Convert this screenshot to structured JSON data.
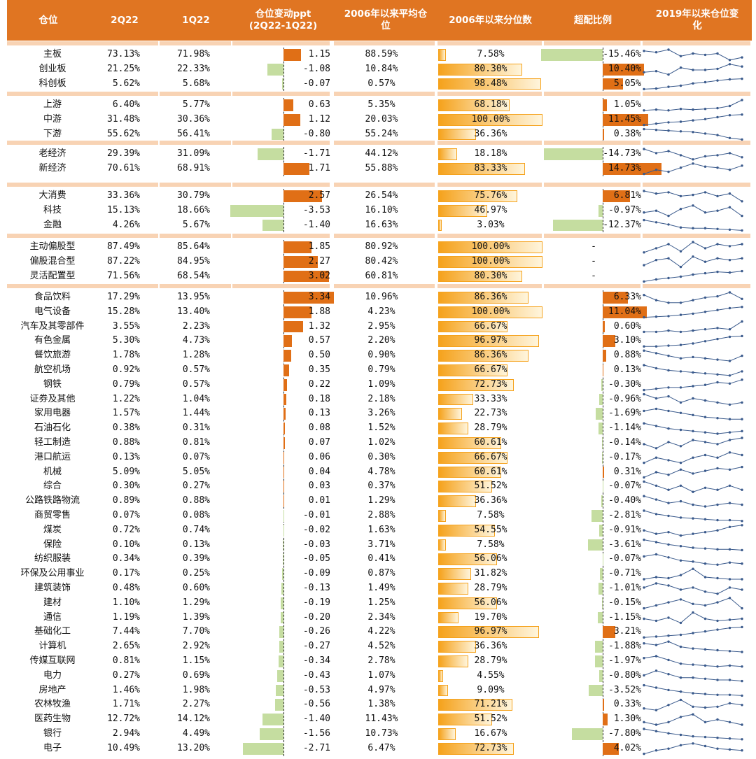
{
  "headers": [
    "仓位",
    "2Q22",
    "1Q22",
    "仓位变动ppt\n(2Q22-1Q22)",
    "2006年以来平均仓\n位",
    "2006年以来分位数",
    "超配比例",
    "2019年以来仓位变\n化"
  ],
  "colors": {
    "header_bg": "#E07522",
    "group_sep": "#F8D3B4",
    "negative_bar": "#C5DDA0",
    "positive_bar": "#E06F16",
    "percentile_bar": "#F5A21C",
    "sparkline": "#3A5A8C"
  },
  "chart_data": {
    "type": "table",
    "groups": [
      {
        "rows": [
          {
            "name": "主板",
            "q2": "73.13%",
            "q1": "71.98%",
            "change": 1.15,
            "avg": "88.59%",
            "pct": 7.58,
            "over": -15.46,
            "spark": [
              52,
              51,
              53,
              48,
              50,
              49,
              50,
              45,
              47
            ]
          },
          {
            "name": "创业板",
            "q2": "21.25%",
            "q1": "22.33%",
            "change": -1.08,
            "avg": "10.84%",
            "pct": 80.3,
            "over": 10.4,
            "spark": [
              48,
              49,
              46,
              52,
              50,
              50,
              51,
              55,
              53
            ]
          },
          {
            "name": "科创板",
            "q2": "5.62%",
            "q1": "5.68%",
            "change": -0.07,
            "avg": "0.57%",
            "pct": 98.48,
            "over": 5.05,
            "spark": [
              40,
              41,
              44,
              46,
              50,
              52,
              55,
              57,
              58
            ]
          }
        ]
      },
      {
        "rows": [
          {
            "name": "上游",
            "q2": "6.40%",
            "q1": "5.77%",
            "change": 0.63,
            "avg": "5.35%",
            "pct": 68.18,
            "over": 1.05,
            "spark": [
              44,
              45,
              44,
              46,
              45,
              46,
              47,
              50,
              58
            ]
          },
          {
            "name": "中游",
            "q2": "31.48%",
            "q1": "30.36%",
            "change": 1.12,
            "avg": "20.03%",
            "pct": 100.0,
            "over": 11.45,
            "spark": [
              40,
              42,
              44,
              45,
              47,
              49,
              52,
              55,
              56
            ]
          },
          {
            "name": "下游",
            "q2": "55.62%",
            "q1": "56.41%",
            "change": -0.8,
            "avg": "55.24%",
            "pct": 36.36,
            "over": 0.38,
            "spark": [
              56,
              55,
              54,
              53,
              52,
              50,
              48,
              44,
              42
            ]
          }
        ]
      },
      {
        "rows": [
          {
            "name": "老经济",
            "q2": "29.39%",
            "q1": "31.09%",
            "change": -1.71,
            "avg": "44.12%",
            "pct": 18.18,
            "over": -14.73,
            "spark": [
              56,
              52,
              54,
              50,
              46,
              49,
              50,
              52,
              48
            ]
          },
          {
            "name": "新经济",
            "q2": "70.61%",
            "q1": "68.91%",
            "change": 1.71,
            "avg": "55.88%",
            "pct": 83.33,
            "over": 14.73,
            "spark": [
              44,
              48,
              46,
              50,
              54,
              51,
              50,
              48,
              52
            ]
          }
        ]
      },
      {
        "rows": [
          {
            "name": "大消费",
            "q2": "33.36%",
            "q1": "30.79%",
            "change": 2.57,
            "avg": "26.54%",
            "pct": 75.76,
            "over": 6.81,
            "spark": [
              56,
              54,
              55,
              52,
              53,
              55,
              52,
              54,
              48
            ]
          },
          {
            "name": "科技",
            "q2": "15.13%",
            "q1": "18.66%",
            "change": -3.53,
            "avg": "16.10%",
            "pct": 46.97,
            "over": -0.97,
            "spark": [
              52,
              53,
              50,
              54,
              56,
              52,
              53,
              55,
              50
            ]
          },
          {
            "name": "金融",
            "q2": "4.26%",
            "q1": "5.67%",
            "change": -1.4,
            "avg": "16.63%",
            "pct": 3.03,
            "over": -12.37,
            "spark": [
              58,
              55,
              52,
              48,
              47,
              47,
              46,
              45,
              44
            ]
          }
        ]
      },
      {
        "rows": [
          {
            "name": "主动偏股型",
            "q2": "87.49%",
            "q1": "85.64%",
            "change": 1.85,
            "avg": "80.92%",
            "pct": 100.0,
            "over": "-",
            "spark": [
              44,
              48,
              52,
              45,
              54,
              48,
              52,
              50,
              52
            ]
          },
          {
            "name": "偏股混合型",
            "q2": "87.22%",
            "q1": "84.95%",
            "change": 2.27,
            "avg": "80.42%",
            "pct": 100.0,
            "over": "-",
            "spark": [
              44,
              50,
              52,
              42,
              54,
              48,
              52,
              50,
              52
            ]
          },
          {
            "name": "灵活配置型",
            "q2": "71.56%",
            "q1": "68.54%",
            "change": 3.02,
            "avg": "60.81%",
            "pct": 80.3,
            "over": "-",
            "spark": [
              40,
              43,
              45,
              47,
              50,
              52,
              54,
              53,
              55
            ]
          }
        ]
      },
      {
        "rows": [
          {
            "name": "食品饮料",
            "q2": "17.29%",
            "q1": "13.95%",
            "change": 3.34,
            "avg": "10.96%",
            "pct": 86.36,
            "over": 6.33,
            "spark": [
              56,
              52,
              50,
              50,
              52,
              54,
              55,
              58,
              53
            ]
          },
          {
            "name": "电气设备",
            "q2": "15.28%",
            "q1": "13.40%",
            "change": 1.88,
            "avg": "4.23%",
            "pct": 100.0,
            "over": 11.04,
            "spark": [
              40,
              41,
              42,
              44,
              46,
              49,
              52,
              55,
              57
            ]
          },
          {
            "name": "汽车及其零部件",
            "q2": "3.55%",
            "q1": "2.23%",
            "change": 1.32,
            "avg": "2.95%",
            "pct": 66.67,
            "over": 0.6,
            "spark": [
              44,
              44,
              45,
              44,
              45,
              46,
              47,
              46,
              52
            ]
          },
          {
            "name": "有色金属",
            "q2": "5.30%",
            "q1": "4.73%",
            "change": 0.57,
            "avg": "2.20%",
            "pct": 96.97,
            "over": 3.1,
            "spark": [
              42,
              42,
              43,
              44,
              46,
              49,
              52,
              55,
              56
            ]
          },
          {
            "name": "餐饮旅游",
            "q2": "1.78%",
            "q1": "1.28%",
            "change": 0.5,
            "avg": "0.90%",
            "pct": 86.36,
            "over": 0.88,
            "spark": [
              56,
              54,
              52,
              50,
              51,
              50,
              49,
              48,
              52
            ]
          },
          {
            "name": "航空机场",
            "q2": "0.92%",
            "q1": "0.57%",
            "change": 0.35,
            "avg": "0.79%",
            "pct": 66.67,
            "over": 0.13,
            "spark": [
              56,
              53,
              51,
              50,
              49,
              48,
              47,
              46,
              50
            ]
          },
          {
            "name": "钢铁",
            "q2": "0.79%",
            "q1": "0.57%",
            "change": 0.22,
            "avg": "1.09%",
            "pct": 72.73,
            "over": -0.3,
            "spark": [
              44,
              45,
              46,
              46,
              47,
              48,
              50,
              49,
              52
            ]
          },
          {
            "name": "证券及其他",
            "q2": "1.22%",
            "q1": "1.04%",
            "change": 0.18,
            "avg": "2.18%",
            "pct": 33.33,
            "over": -0.96,
            "spark": [
              52,
              50,
              51,
              48,
              50,
              49,
              48,
              47,
              48
            ]
          },
          {
            "name": "家用电器",
            "q2": "1.57%",
            "q1": "1.44%",
            "change": 0.13,
            "avg": "3.26%",
            "pct": 22.73,
            "over": -1.69,
            "spark": [
              54,
              56,
              54,
              52,
              50,
              48,
              47,
              46,
              46
            ]
          },
          {
            "name": "石油石化",
            "q2": "0.38%",
            "q1": "0.31%",
            "change": 0.08,
            "avg": "1.52%",
            "pct": 28.79,
            "over": -1.14,
            "spark": [
              54,
              52,
              50,
              49,
              48,
              47,
              46,
              47,
              48
            ]
          },
          {
            "name": "轻工制造",
            "q2": "0.88%",
            "q1": "0.81%",
            "change": 0.07,
            "avg": "1.02%",
            "pct": 60.61,
            "over": -0.14,
            "spark": [
              48,
              46,
              49,
              47,
              50,
              49,
              48,
              50,
              51
            ]
          },
          {
            "name": "港口航运",
            "q2": "0.13%",
            "q1": "0.07%",
            "change": 0.06,
            "avg": "0.30%",
            "pct": 66.67,
            "over": -0.17,
            "spark": [
              48,
              50,
              49,
              48,
              50,
              51,
              50,
              52,
              51
            ]
          },
          {
            "name": "机械",
            "q2": "5.09%",
            "q1": "5.05%",
            "change": 0.04,
            "avg": "4.78%",
            "pct": 60.61,
            "over": 0.31,
            "spark": [
              46,
              50,
              48,
              52,
              49,
              51,
              53,
              52,
              54
            ]
          },
          {
            "name": "综合",
            "q2": "0.30%",
            "q1": "0.27%",
            "change": 0.03,
            "avg": "0.37%",
            "pct": 51.52,
            "over": -0.07,
            "spark": [
              54,
              52,
              50,
              52,
              49,
              51,
              50,
              52,
              50
            ]
          },
          {
            "name": "公路铁路物流",
            "q2": "0.89%",
            "q1": "0.88%",
            "change": 0.01,
            "avg": "1.29%",
            "pct": 36.36,
            "over": -0.4,
            "spark": [
              54,
              52,
              50,
              51,
              49,
              48,
              49,
              50,
              49
            ]
          },
          {
            "name": "商贸零售",
            "q2": "0.07%",
            "q1": "0.08%",
            "change": -0.01,
            "avg": "2.88%",
            "pct": 7.58,
            "over": -2.81,
            "spark": [
              58,
              54,
              52,
              50,
              49,
              48,
              47,
              47,
              46
            ]
          },
          {
            "name": "煤炭",
            "q2": "0.72%",
            "q1": "0.74%",
            "change": -0.02,
            "avg": "1.63%",
            "pct": 54.55,
            "over": -0.91,
            "spark": [
              48,
              46,
              47,
              45,
              46,
              47,
              48,
              50,
              51
            ]
          },
          {
            "name": "保险",
            "q2": "0.10%",
            "q1": "0.13%",
            "change": -0.03,
            "avg": "3.71%",
            "pct": 7.58,
            "over": -3.61,
            "spark": [
              58,
              55,
              52,
              50,
              48,
              47,
              46,
              46,
              45
            ]
          },
          {
            "name": "纺织服装",
            "q2": "0.34%",
            "q1": "0.39%",
            "change": -0.05,
            "avg": "0.41%",
            "pct": 56.06,
            "over": -0.07,
            "spark": [
              54,
              56,
              53,
              50,
              49,
              47,
              46,
              48,
              47
            ]
          },
          {
            "name": "环保及公用事业",
            "q2": "0.17%",
            "q1": "0.25%",
            "change": -0.09,
            "avg": "0.87%",
            "pct": 31.82,
            "over": -0.71,
            "spark": [
              48,
              50,
              49,
              52,
              58,
              50,
              49,
              48,
              48
            ]
          },
          {
            "name": "建筑装饰",
            "q2": "0.48%",
            "q1": "0.60%",
            "change": -0.13,
            "avg": "1.49%",
            "pct": 28.79,
            "over": -1.01,
            "spark": [
              50,
              52,
              51,
              49,
              50,
              48,
              47,
              50,
              49
            ]
          },
          {
            "name": "建材",
            "q2": "1.10%",
            "q1": "1.29%",
            "change": -0.19,
            "avg": "1.25%",
            "pct": 56.06,
            "over": -0.15,
            "spark": [
              48,
              50,
              52,
              54,
              51,
              50,
              52,
              55,
              48
            ]
          },
          {
            "name": "通信",
            "q2": "1.19%",
            "q1": "1.39%",
            "change": -0.2,
            "avg": "2.34%",
            "pct": 19.7,
            "over": -1.15,
            "spark": [
              52,
              50,
              53,
              48,
              58,
              52,
              50,
              51,
              52
            ]
          },
          {
            "name": "基础化工",
            "q2": "7.44%",
            "q1": "7.70%",
            "change": -0.26,
            "avg": "4.22%",
            "pct": 96.97,
            "over": 3.21,
            "spark": [
              42,
              43,
              44,
              45,
              47,
              49,
              51,
              53,
              54
            ]
          },
          {
            "name": "计算机",
            "q2": "2.65%",
            "q1": "2.92%",
            "change": -0.27,
            "avg": "4.52%",
            "pct": 36.36,
            "over": -1.88,
            "spark": [
              54,
              52,
              56,
              50,
              48,
              47,
              46,
              45,
              44
            ]
          },
          {
            "name": "传媒互联网",
            "q2": "0.81%",
            "q1": "1.15%",
            "change": -0.34,
            "avg": "2.78%",
            "pct": 28.79,
            "over": -1.97,
            "spark": [
              54,
              56,
              52,
              48,
              47,
              46,
              45,
              46,
              45
            ]
          },
          {
            "name": "电力",
            "q2": "0.27%",
            "q1": "0.69%",
            "change": -0.43,
            "avg": "1.07%",
            "pct": 4.55,
            "over": -0.8,
            "spark": [
              52,
              56,
              53,
              50,
              50,
              49,
              48,
              48,
              47
            ]
          },
          {
            "name": "房地产",
            "q2": "1.46%",
            "q1": "1.98%",
            "change": -0.53,
            "avg": "4.97%",
            "pct": 9.09,
            "over": -3.52,
            "spark": [
              58,
              55,
              52,
              50,
              48,
              47,
              46,
              46,
              45
            ]
          },
          {
            "name": "农林牧渔",
            "q2": "1.71%",
            "q1": "2.27%",
            "change": -0.56,
            "avg": "1.38%",
            "pct": 71.21,
            "over": 0.33,
            "spark": [
              48,
              46,
              52,
              58,
              50,
              49,
              50,
              54,
              52
            ]
          },
          {
            "name": "医药生物",
            "q2": "12.72%",
            "q1": "14.12%",
            "change": -1.4,
            "avg": "11.43%",
            "pct": 51.52,
            "over": 1.3,
            "spark": [
              52,
              50,
              52,
              56,
              58,
              52,
              54,
              52,
              50
            ]
          },
          {
            "name": "银行",
            "q2": "2.94%",
            "q1": "4.49%",
            "change": -1.56,
            "avg": "10.73%",
            "pct": 16.67,
            "over": -7.8,
            "spark": [
              58,
              55,
              52,
              50,
              48,
              47,
              46,
              45,
              44
            ]
          },
          {
            "name": "电子",
            "q2": "10.49%",
            "q1": "13.20%",
            "change": -2.71,
            "avg": "6.47%",
            "pct": 72.73,
            "over": 4.02,
            "spark": [
              44,
              48,
              50,
              54,
              56,
              53,
              50,
              49,
              48
            ]
          }
        ]
      }
    ]
  }
}
